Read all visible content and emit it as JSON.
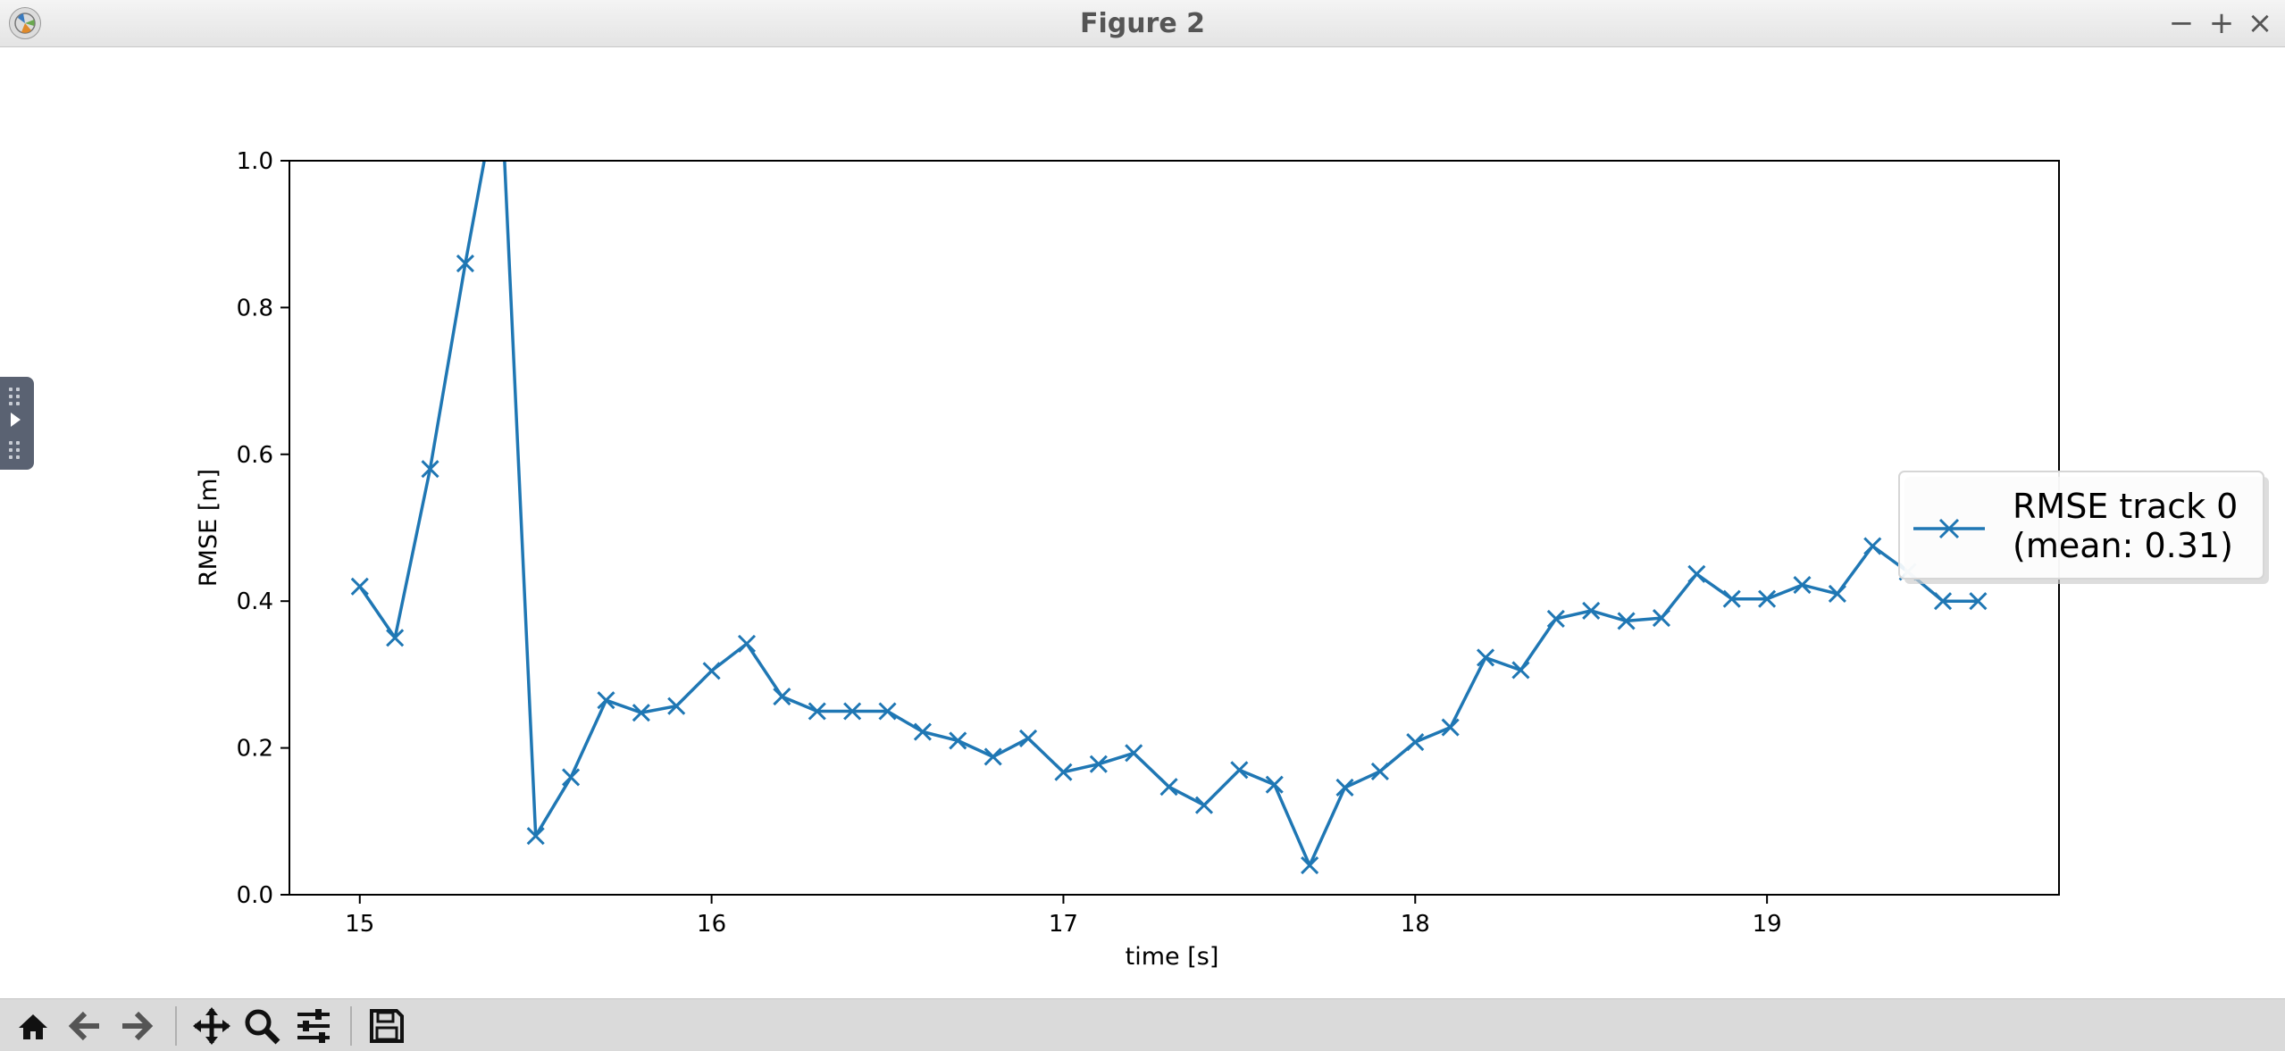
{
  "window": {
    "title": "Figure 2",
    "controls": {
      "minimize": "−",
      "maximize": "+",
      "close": "×"
    }
  },
  "toolbar": {
    "buttons": [
      {
        "name": "home",
        "icon": "home-icon"
      },
      {
        "name": "back",
        "icon": "back-arrow-icon"
      },
      {
        "name": "forward",
        "icon": "forward-arrow-icon"
      },
      {
        "name": "pan",
        "icon": "move-icon"
      },
      {
        "name": "zoom",
        "icon": "zoom-icon"
      },
      {
        "name": "configure-subplots",
        "icon": "sliders-icon"
      },
      {
        "name": "save",
        "icon": "save-icon"
      }
    ]
  },
  "colors": {
    "series": "#1f77b4"
  },
  "chart_data": {
    "type": "line",
    "title": "",
    "xlabel": "time [s]",
    "ylabel": "RMSE [m]",
    "xlim": [
      14.8,
      19.83
    ],
    "ylim": [
      0.0,
      1.0
    ],
    "xticks": [
      15,
      16,
      17,
      18,
      19
    ],
    "xtick_labels": [
      "15",
      "16",
      "17",
      "18",
      "19"
    ],
    "yticks": [
      0.0,
      0.2,
      0.4,
      0.6,
      0.8,
      1.0
    ],
    "ytick_labels": [
      "0.0",
      "0.2",
      "0.4",
      "0.6",
      "0.8",
      "1.0"
    ],
    "grid": false,
    "legend": {
      "placement": "center-right, partly outside the axes"
    },
    "series": [
      {
        "name": "RMSE track 0\n(mean: 0.31)",
        "legend_lines": [
          "RMSE track 0",
          "(mean: 0.31)"
        ],
        "marker": "x",
        "x": [
          15.0,
          15.1,
          15.2,
          15.3,
          15.4,
          15.5,
          15.6,
          15.7,
          15.8,
          15.9,
          16.0,
          16.1,
          16.2,
          16.3,
          16.4,
          16.5,
          16.6,
          16.7,
          16.8,
          16.9,
          17.0,
          17.1,
          17.2,
          17.3,
          17.4,
          17.5,
          17.6,
          17.7,
          17.8,
          17.9,
          18.0,
          18.1,
          18.2,
          18.3,
          18.4,
          18.5,
          18.6,
          18.7,
          18.8,
          18.9,
          19.0,
          19.1,
          19.2,
          19.3,
          19.4,
          19.5,
          19.6
        ],
        "y": [
          0.42,
          0.35,
          0.58,
          0.86,
          1.12,
          0.08,
          0.16,
          0.265,
          0.248,
          0.257,
          0.305,
          0.342,
          0.27,
          0.25,
          0.25,
          0.25,
          0.222,
          0.21,
          0.188,
          0.213,
          0.167,
          0.178,
          0.193,
          0.147,
          0.122,
          0.17,
          0.15,
          0.04,
          0.146,
          0.168,
          0.208,
          0.228,
          0.323,
          0.306,
          0.376,
          0.387,
          0.373,
          0.377,
          0.437,
          0.403,
          0.403,
          0.422,
          0.41,
          0.475,
          0.44,
          0.4,
          0.4
        ]
      }
    ]
  }
}
